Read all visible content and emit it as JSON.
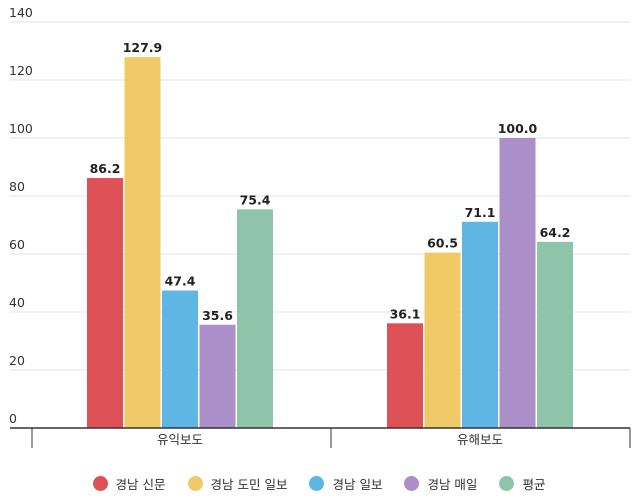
{
  "chart_data": {
    "type": "bar",
    "categories": [
      "유익보도",
      "유해보도"
    ],
    "series": [
      {
        "name": "경남 신문",
        "values": [
          86.2,
          36.1
        ],
        "color": "#de5156"
      },
      {
        "name": "경남 도민 일보",
        "values": [
          127.9,
          60.5
        ],
        "color": "#f0ca67"
      },
      {
        "name": "경남 일보",
        "values": [
          47.4,
          71.1
        ],
        "color": "#5fb6e5"
      },
      {
        "name": "경남 매일",
        "values": [
          35.6,
          100.0
        ],
        "color": "#ab8fc9"
      },
      {
        "name": "평균",
        "values": [
          75.4,
          64.2
        ],
        "color": "#8ec4a9"
      }
    ],
    "data_labels": [
      [
        "86.2",
        "127.9",
        "47.4",
        "35.6",
        "75.4"
      ],
      [
        "36.1",
        "60.5",
        "71.1",
        "100.0",
        "64.2"
      ]
    ],
    "yticks": [
      "0",
      "20",
      "40",
      "60",
      "80",
      "100",
      "120",
      "140"
    ],
    "ylim": [
      0,
      140
    ],
    "grid": true,
    "legend_position": "bottom"
  }
}
